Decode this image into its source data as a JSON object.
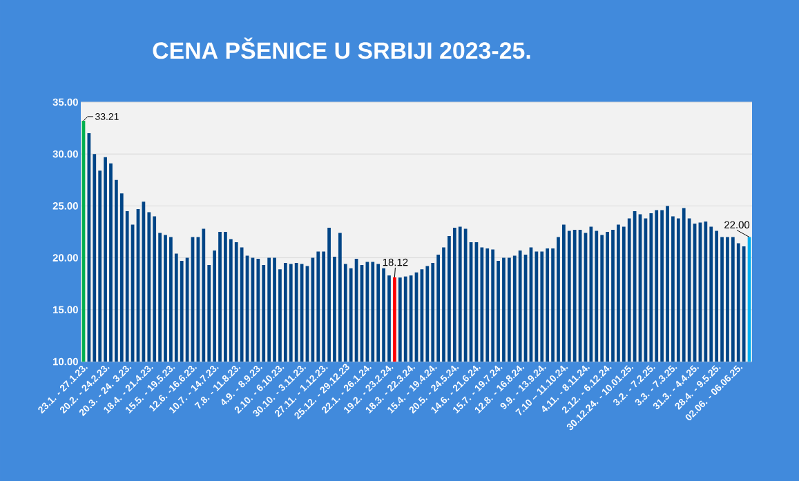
{
  "chart_data": {
    "type": "bar",
    "title": "CENA PŠENICE U SRBIJI 2023-25.",
    "categories": [
      "23.1. - 27.1.23.",
      null,
      null,
      null,
      "20.2. - 24.2.23.",
      null,
      null,
      null,
      "20.3. - 24. 3.23.",
      null,
      null,
      null,
      "18.4. - 21.4.23.",
      null,
      null,
      null,
      "15.5. - 19.5.23.",
      null,
      null,
      null,
      "12.6. -16.6.23.",
      null,
      null,
      null,
      "10.7. - 14.7.23.",
      null,
      null,
      null,
      "7.8. - 11.8.23.",
      null,
      null,
      null,
      "4.9. - 8.9.23.",
      null,
      null,
      null,
      "2.10. - 6.10.23.",
      null,
      null,
      null,
      "30.10. - 3.11.23.",
      null,
      null,
      null,
      "27.11. - 1.12.23.",
      null,
      null,
      null,
      "25.12. - 29.12.23",
      null,
      null,
      null,
      "22.1. - 26.1.24.",
      null,
      null,
      null,
      "19.2. - 23.2.24.",
      null,
      null,
      null,
      "18.3. - 22.3.24.",
      null,
      null,
      null,
      "15.4. - 19.4.24.",
      null,
      null,
      null,
      "20.5. - 24.5.24.",
      null,
      null,
      null,
      "14.6. - 21.6.24.",
      null,
      null,
      null,
      "15.7. - 19.7.24.",
      null,
      null,
      null,
      "12.8. - 16.8.24.",
      null,
      null,
      null,
      "9.9. - 13.9.24.",
      null,
      null,
      null,
      "7.10 – 11.10.24.",
      null,
      null,
      null,
      "4.11. - 8.11.24.",
      null,
      null,
      null,
      "2.12. - 6.12.24.",
      null,
      null,
      null,
      "30.12.24. - 10.01.25.",
      null,
      null,
      null,
      "3.2. - 7.2.25.",
      null,
      null,
      null,
      "3.3. - 7.3.25.",
      null,
      null,
      null,
      "31.3. - 4.4.25.",
      null,
      null,
      null,
      "28.4. - 9.5.25.",
      null,
      null,
      null,
      "02.06. - 06.06.25.",
      null,
      null
    ],
    "values": [
      33.21,
      32.0,
      30.0,
      28.4,
      29.7,
      29.1,
      27.5,
      26.2,
      24.5,
      23.2,
      24.7,
      25.4,
      24.4,
      24.0,
      22.4,
      22.2,
      22.0,
      20.4,
      19.7,
      20.0,
      22.0,
      22.0,
      22.8,
      19.3,
      20.7,
      22.5,
      22.5,
      21.8,
      21.5,
      21.0,
      20.2,
      20.0,
      19.9,
      19.3,
      20.0,
      20.0,
      18.9,
      19.5,
      19.4,
      19.5,
      19.4,
      19.2,
      20.0,
      20.6,
      20.6,
      22.9,
      20.1,
      22.4,
      19.4,
      19.0,
      19.9,
      19.3,
      19.6,
      19.6,
      19.4,
      19.0,
      18.3,
      18.12,
      18.1,
      18.2,
      18.3,
      18.6,
      18.9,
      19.2,
      19.5,
      20.3,
      21.0,
      22.1,
      22.9,
      23.0,
      22.8,
      21.5,
      21.5,
      21.0,
      20.9,
      20.8,
      19.7,
      20.0,
      20.0,
      20.2,
      20.7,
      20.3,
      21.0,
      20.6,
      20.6,
      20.9,
      20.9,
      22.0,
      23.2,
      22.6,
      22.7,
      22.7,
      22.4,
      23.0,
      22.6,
      22.2,
      22.5,
      22.7,
      23.2,
      23.0,
      23.8,
      24.5,
      24.2,
      23.8,
      24.3,
      24.6,
      24.6,
      25.0,
      24.0,
      23.8,
      24.8,
      23.8,
      23.3,
      23.4,
      23.5,
      23.0,
      22.6,
      22.0,
      22.0,
      22.0,
      21.4,
      21.1,
      22.0
    ],
    "colors": [
      "#00b050",
      "#004586",
      "#004586",
      "#004586",
      "#004586",
      "#004586",
      "#004586",
      "#004586",
      "#004586",
      "#004586",
      "#004586",
      "#004586",
      "#004586",
      "#004586",
      "#004586",
      "#004586",
      "#004586",
      "#004586",
      "#004586",
      "#004586",
      "#004586",
      "#004586",
      "#004586",
      "#004586",
      "#004586",
      "#004586",
      "#004586",
      "#004586",
      "#004586",
      "#004586",
      "#004586",
      "#004586",
      "#004586",
      "#004586",
      "#004586",
      "#004586",
      "#004586",
      "#004586",
      "#004586",
      "#004586",
      "#004586",
      "#004586",
      "#004586",
      "#004586",
      "#004586",
      "#004586",
      "#004586",
      "#004586",
      "#004586",
      "#004586",
      "#004586",
      "#004586",
      "#004586",
      "#004586",
      "#004586",
      "#004586",
      "#004586",
      "#ff0000",
      "#004586",
      "#004586",
      "#004586",
      "#004586",
      "#004586",
      "#004586",
      "#004586",
      "#004586",
      "#004586",
      "#004586",
      "#004586",
      "#004586",
      "#004586",
      "#004586",
      "#004586",
      "#004586",
      "#004586",
      "#004586",
      "#004586",
      "#004586",
      "#004586",
      "#004586",
      "#004586",
      "#004586",
      "#004586",
      "#004586",
      "#004586",
      "#004586",
      "#004586",
      "#004586",
      "#004586",
      "#004586",
      "#004586",
      "#004586",
      "#004586",
      "#004586",
      "#004586",
      "#004586",
      "#004586",
      "#004586",
      "#004586",
      "#004586",
      "#004586",
      "#004586",
      "#004586",
      "#004586",
      "#004586",
      "#004586",
      "#004586",
      "#004586",
      "#004586",
      "#004586",
      "#004586",
      "#004586",
      "#004586",
      "#004586",
      "#004586",
      "#004586",
      "#004586",
      "#004586",
      "#004586",
      "#004586",
      "#004586",
      "#004586",
      "#00b0f0"
    ],
    "value_labels": [
      "33.21",
      null,
      null,
      null,
      null,
      null,
      null,
      null,
      null,
      null,
      null,
      null,
      null,
      null,
      null,
      null,
      null,
      null,
      null,
      null,
      null,
      null,
      null,
      null,
      null,
      null,
      null,
      null,
      null,
      null,
      null,
      null,
      null,
      null,
      null,
      null,
      null,
      null,
      null,
      null,
      null,
      null,
      null,
      null,
      null,
      null,
      null,
      null,
      null,
      null,
      null,
      null,
      null,
      null,
      null,
      null,
      null,
      "18.12",
      null,
      null,
      null,
      null,
      null,
      null,
      null,
      null,
      null,
      null,
      null,
      null,
      null,
      null,
      null,
      null,
      null,
      null,
      null,
      null,
      null,
      null,
      null,
      null,
      null,
      null,
      null,
      null,
      null,
      null,
      null,
      null,
      null,
      null,
      null,
      null,
      null,
      null,
      null,
      null,
      null,
      null,
      null,
      null,
      null,
      null,
      null,
      null,
      null,
      null,
      null,
      null,
      null,
      null,
      null,
      null,
      null,
      null,
      null,
      null,
      null,
      null,
      null,
      null,
      "22.00"
    ],
    "ylim": [
      10,
      35
    ],
    "yticks": [
      {
        "value": 10,
        "label": "10.00"
      },
      {
        "value": 15,
        "label": "15.00"
      },
      {
        "value": 20,
        "label": "20.00"
      },
      {
        "value": 25,
        "label": "25.00"
      },
      {
        "value": 30,
        "label": "30.00"
      },
      {
        "value": 35,
        "label": "35.00"
      }
    ],
    "grid": "y"
  }
}
